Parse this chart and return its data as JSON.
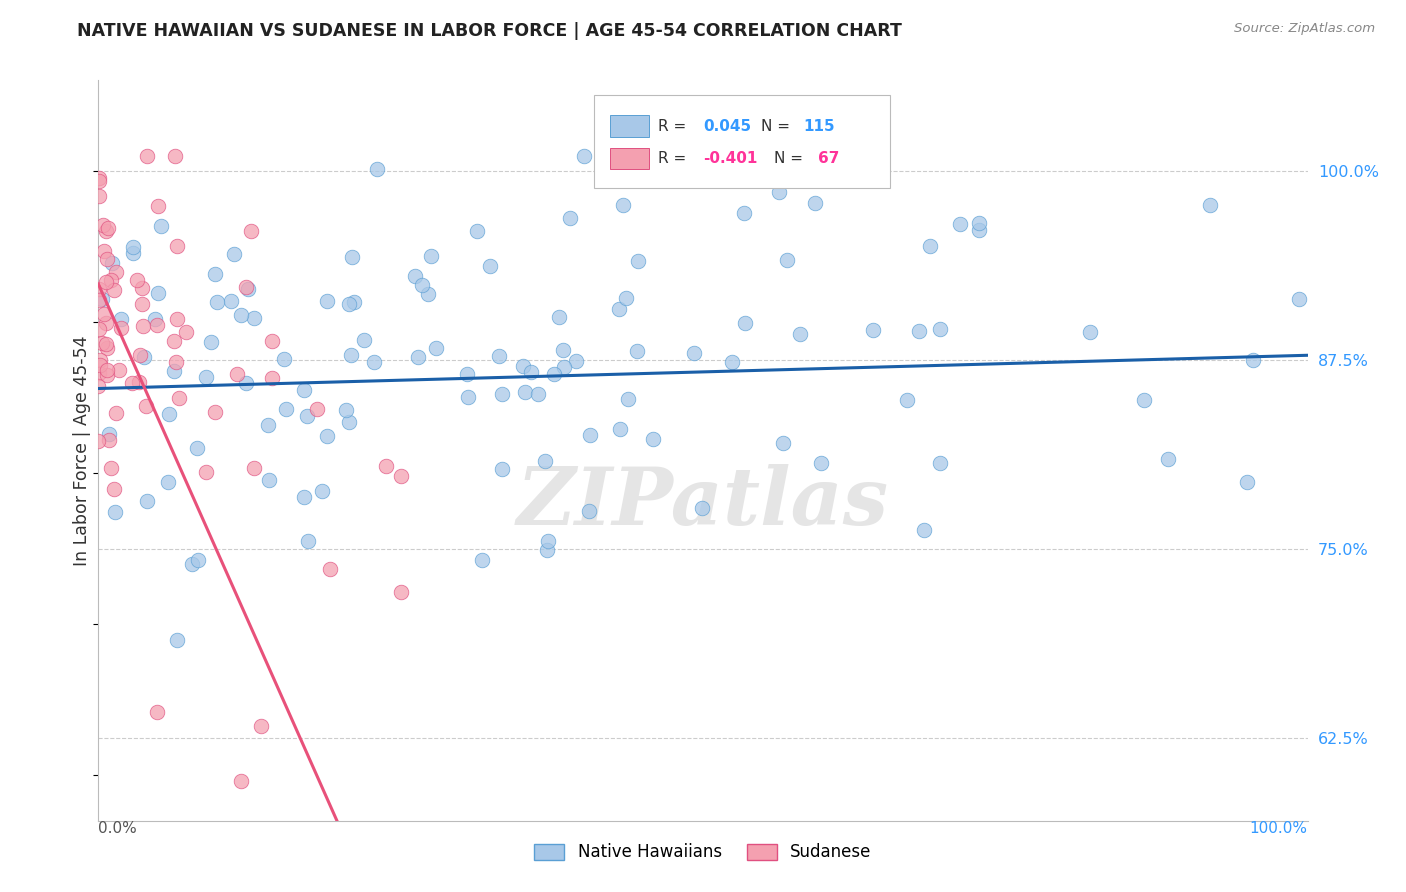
{
  "title": "NATIVE HAWAIIAN VS SUDANESE IN LABOR FORCE | AGE 45-54 CORRELATION CHART",
  "source": "Source: ZipAtlas.com",
  "ylabel": "In Labor Force | Age 45-54",
  "ytick_labels": [
    "62.5%",
    "75.0%",
    "87.5%",
    "100.0%"
  ],
  "ytick_values": [
    0.625,
    0.75,
    0.875,
    1.0
  ],
  "xlim": [
    0.0,
    1.0
  ],
  "ylim": [
    0.57,
    1.06
  ],
  "nh_color": "#a8c8e8",
  "nh_edge_color": "#5a9fd4",
  "sud_color": "#f4a0b0",
  "sud_edge_color": "#e05080",
  "trendline_nh_color": "#1a5fa8",
  "trendline_sud_color": "#e8517a",
  "trendline_dash_color": "#cccccc",
  "N_nh": 115,
  "N_sud": 67,
  "R_nh": 0.045,
  "R_sud": -0.401,
  "watermark": "ZIPatlas",
  "background_color": "#ffffff",
  "grid_color": "#cccccc",
  "legend_box_color": "#eeeeee",
  "val_color_nh": "#3399ff",
  "val_color_sud": "#ff3399"
}
